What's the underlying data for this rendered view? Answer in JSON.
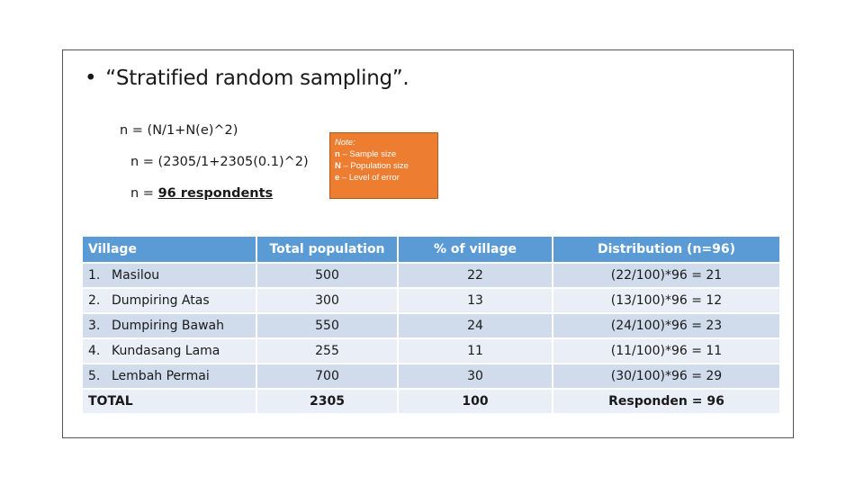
{
  "heading": {
    "bullet": "•",
    "text": "“Stratified random sampling”."
  },
  "formulas": {
    "line1": "n = (N/1+N(e)^2)",
    "line2": "n = (2305/1+2305(0.1)^2)",
    "line3_prefix": "n = ",
    "line3_value": "96 respondents"
  },
  "note": {
    "title": "Note:",
    "lines": [
      {
        "key": "n",
        "text": " – Sample size"
      },
      {
        "key": "N",
        "text": " – Population size"
      },
      {
        "key": "e",
        "text": " – Level of error"
      }
    ]
  },
  "table": {
    "headers": [
      "Village",
      "Total population",
      "% of village",
      "Distribution (n=96)"
    ],
    "rows": [
      {
        "num": "1.",
        "village": "Masilou",
        "population": "500",
        "percent": "22",
        "distribution": "(22/100)*96 = 21"
      },
      {
        "num": "2.",
        "village": "Dumpiring Atas",
        "population": "300",
        "percent": "13",
        "distribution": "(13/100)*96 = 12"
      },
      {
        "num": "3.",
        "village": "Dumpiring Bawah",
        "population": "550",
        "percent": "24",
        "distribution": "(24/100)*96 = 23"
      },
      {
        "num": "4.",
        "village": "Kundasang Lama",
        "population": "255",
        "percent": "11",
        "distribution": "(11/100)*96 = 11"
      },
      {
        "num": "5.",
        "village": "Lembah Permai",
        "population": "700",
        "percent": "30",
        "distribution": "(30/100)*96 = 29"
      }
    ],
    "total": {
      "label": "TOTAL",
      "population": "2305",
      "percent": "100",
      "distribution": "Responden = 96"
    }
  },
  "colors": {
    "header_blue": "#5b9bd5",
    "row_dark": "#d0dcec",
    "row_light": "#e9eef7",
    "note_orange": "#ed7d31"
  }
}
